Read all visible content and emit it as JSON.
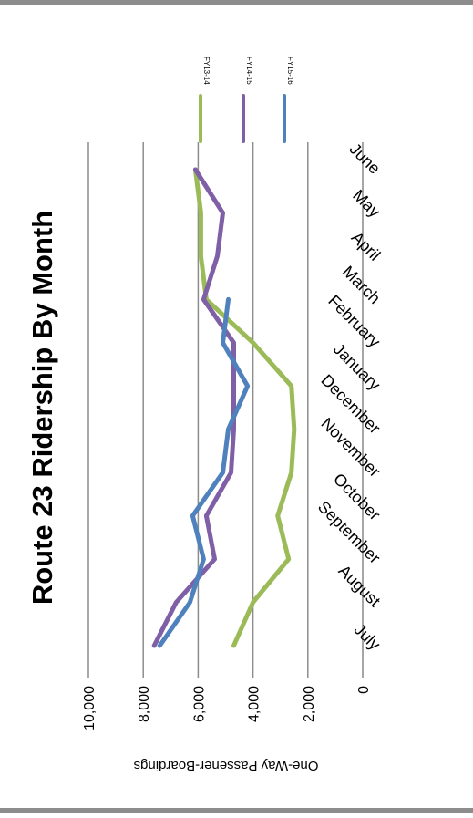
{
  "chart_data": {
    "type": "line",
    "title": "Route 23 Ridership By Month",
    "ylabel": "One-Way Passener-Boardings",
    "xlabel": "",
    "ylim": [
      0,
      10000
    ],
    "yticks": [
      "0",
      "2,000",
      "4,000",
      "6,000",
      "8,000",
      "10,000"
    ],
    "categories": [
      "July",
      "August",
      "September",
      "October",
      "November",
      "December",
      "January",
      "February",
      "March",
      "April",
      "May",
      "June"
    ],
    "grid": true,
    "legend_position": "top",
    "series": [
      {
        "name": "FY13-14",
        "color": "#9BBB59",
        "values": [
          4700,
          4000,
          2700,
          3100,
          2600,
          2500,
          2600,
          4000,
          5700,
          5900,
          5900,
          6100
        ]
      },
      {
        "name": "FY14-15",
        "color": "#7F5FA6",
        "values": [
          7600,
          6800,
          5400,
          5700,
          4800,
          4700,
          4700,
          4700,
          5800,
          5300,
          5100,
          6100
        ]
      },
      {
        "name": "FY15-16",
        "color": "#4F81BD",
        "values": [
          7400,
          6300,
          5800,
          6200,
          5100,
          4900,
          4200,
          5100,
          4900,
          null,
          null,
          null
        ]
      }
    ]
  }
}
